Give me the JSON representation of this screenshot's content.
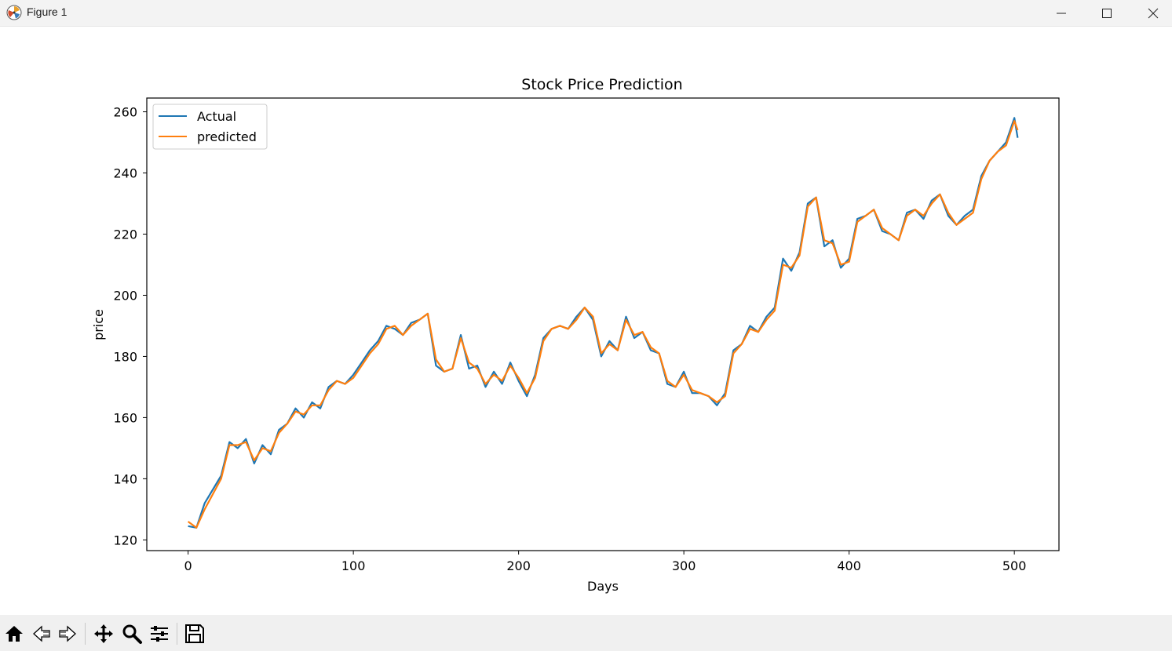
{
  "window": {
    "title": "Figure 1",
    "controls": [
      "minimize-icon",
      "maximize-icon",
      "close-icon"
    ]
  },
  "toolbar": {
    "tools": [
      "home-icon",
      "back-icon",
      "forward-icon",
      "pan-icon",
      "zoom-icon",
      "configure-subplots-icon",
      "save-icon"
    ]
  },
  "colors": {
    "actual": "#1f77b4",
    "predicted": "#ff7f0e"
  },
  "chart_data": {
    "type": "line",
    "title": "Stock Price Prediction",
    "xlabel": "Days",
    "ylabel": "price",
    "xlim": [
      -25,
      527
    ],
    "ylim": [
      116.5,
      264.5
    ],
    "xticks": [
      0,
      100,
      200,
      300,
      400,
      500
    ],
    "yticks": [
      120,
      140,
      160,
      180,
      200,
      220,
      240,
      260
    ],
    "legend": {
      "position": "upper left",
      "entries": [
        "Actual",
        "predicted"
      ]
    },
    "series": [
      {
        "name": "Actual",
        "color": "#1f77b4",
        "x": [
          0,
          5,
          10,
          20,
          25,
          30,
          35,
          40,
          45,
          50,
          55,
          60,
          65,
          70,
          75,
          80,
          85,
          90,
          95,
          100,
          105,
          110,
          115,
          120,
          125,
          130,
          135,
          140,
          145,
          150,
          155,
          160,
          165,
          170,
          175,
          180,
          185,
          190,
          195,
          200,
          205,
          210,
          215,
          220,
          225,
          230,
          235,
          240,
          245,
          250,
          255,
          260,
          265,
          270,
          275,
          280,
          285,
          290,
          295,
          300,
          305,
          310,
          315,
          320,
          325,
          330,
          335,
          340,
          345,
          350,
          355,
          360,
          365,
          370,
          375,
          380,
          385,
          390,
          395,
          400,
          405,
          410,
          415,
          420,
          425,
          430,
          435,
          440,
          445,
          450,
          455,
          460,
          465,
          470,
          475,
          480,
          485,
          490,
          495,
          500,
          502
        ],
        "y": [
          124.5,
          124,
          132,
          141,
          152,
          150,
          153,
          145,
          151,
          148,
          156,
          158,
          163,
          160,
          165,
          163,
          170,
          172,
          171,
          174,
          178,
          182,
          185,
          190,
          189,
          187,
          191,
          192,
          194,
          177,
          175,
          176,
          187,
          176,
          177,
          170,
          175,
          171,
          178,
          172,
          167,
          174,
          186,
          189,
          190,
          189,
          193,
          196,
          192,
          180,
          185,
          182,
          193,
          186,
          188,
          182,
          181,
          171,
          170,
          175,
          168,
          168,
          167,
          164,
          168,
          182,
          184,
          190,
          188,
          193,
          196,
          212,
          208,
          214,
          230,
          232,
          216,
          218,
          209,
          212,
          225,
          226,
          228,
          221,
          220,
          218,
          227,
          228,
          225,
          231,
          233,
          226,
          223,
          226,
          228,
          239,
          244,
          247,
          250,
          258,
          251.5
        ]
      },
      {
        "name": "predicted",
        "color": "#ff7f0e",
        "x": [
          0,
          5,
          10,
          20,
          25,
          30,
          35,
          40,
          45,
          50,
          55,
          60,
          65,
          70,
          75,
          80,
          85,
          90,
          95,
          100,
          105,
          110,
          115,
          120,
          125,
          130,
          135,
          140,
          145,
          150,
          155,
          160,
          165,
          170,
          175,
          180,
          185,
          190,
          195,
          200,
          205,
          210,
          215,
          220,
          225,
          230,
          235,
          240,
          245,
          250,
          255,
          260,
          265,
          270,
          275,
          280,
          285,
          290,
          295,
          300,
          305,
          310,
          315,
          320,
          325,
          330,
          335,
          340,
          345,
          350,
          355,
          360,
          365,
          370,
          375,
          380,
          385,
          390,
          395,
          400,
          405,
          410,
          415,
          420,
          425,
          430,
          435,
          440,
          445,
          450,
          455,
          460,
          465,
          470,
          475,
          480,
          485,
          490,
          495,
          500,
          502
        ],
        "y": [
          126,
          124,
          130,
          140,
          151,
          151,
          152,
          146,
          150,
          149,
          155,
          158,
          162,
          161,
          164,
          164,
          169,
          172,
          171,
          173,
          177,
          181,
          184,
          189,
          190,
          187,
          190,
          192,
          194,
          179,
          175,
          176,
          186,
          178,
          176,
          171,
          174,
          172,
          177,
          173,
          168,
          173,
          185,
          189,
          190,
          189,
          192,
          196,
          193,
          181,
          184,
          182,
          192,
          187,
          188,
          183,
          181,
          172,
          170,
          174,
          169,
          168,
          167,
          165,
          167,
          181,
          184,
          189,
          188,
          192,
          195,
          210,
          209,
          213,
          229,
          232,
          218,
          217,
          210,
          211,
          224,
          226,
          228,
          222,
          220,
          218,
          226,
          228,
          226,
          230,
          233,
          227,
          223,
          225,
          227,
          238,
          244,
          247,
          249,
          257,
          254
        ]
      }
    ]
  }
}
